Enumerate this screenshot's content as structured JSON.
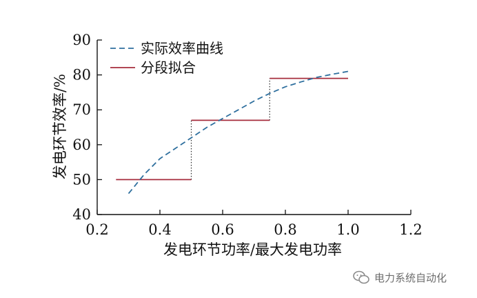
{
  "chart_data": {
    "type": "line",
    "xlabel": "发电环节功率/最大发电功率",
    "ylabel": "发电环节效率/%",
    "xlim": [
      0.2,
      1.2
    ],
    "ylim": [
      40,
      90
    ],
    "x_ticks": [
      "0.2",
      "0.4",
      "0.6",
      "0.8",
      "1.0",
      "1.2"
    ],
    "y_ticks": [
      "40",
      "50",
      "60",
      "70",
      "80",
      "90"
    ],
    "legend_position": "top-left",
    "series": [
      {
        "name": "实际效率曲线",
        "style": "dashed",
        "color": "#2e6f9e",
        "x": [
          0.3,
          0.35,
          0.4,
          0.45,
          0.5,
          0.55,
          0.6,
          0.65,
          0.7,
          0.75,
          0.8,
          0.85,
          0.9,
          0.95,
          1.0
        ],
        "y": [
          46,
          51.5,
          56,
          59,
          62,
          65,
          67.5,
          70,
          72.5,
          74.7,
          76.6,
          78,
          79.3,
          80.2,
          81
        ]
      },
      {
        "name": "分段拟合",
        "style": "solid",
        "color": "#a62c3c",
        "segments": [
          {
            "x": [
              0.26,
              0.5
            ],
            "y": 50
          },
          {
            "x": [
              0.5,
              0.75
            ],
            "y": 67
          },
          {
            "x": [
              0.75,
              1.0
            ],
            "y": 79
          }
        ],
        "breakpoints": [
          0.5,
          0.75
        ]
      }
    ]
  },
  "watermark": {
    "icon": "wechat-icon",
    "text": "电力系统自动化"
  }
}
